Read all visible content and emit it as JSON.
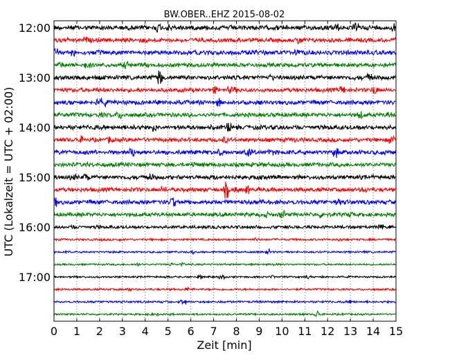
{
  "chart_data": {
    "type": "line",
    "title": "BW.OBER..EHZ 2015-08-02",
    "xlabel": "Zeit  [min]",
    "ylabel": "UTC (Lokalzeit = UTC + 02:00)",
    "xlim": [
      0,
      15
    ],
    "xticks": [
      "0",
      "1",
      "2",
      "3",
      "4",
      "5",
      "6",
      "7",
      "8",
      "9",
      "10",
      "11",
      "12",
      "13",
      "14",
      "15"
    ],
    "ytick_labels": [
      "12:00",
      "13:00",
      "14:00",
      "15:00",
      "16:00",
      "17:00"
    ],
    "row_interval_minutes": 15,
    "grid": "vertical dotted",
    "colors": [
      "#000000",
      "#ff0000",
      "#0000ff",
      "#008000"
    ],
    "rows": [
      {
        "start": "12:00",
        "color": "#000000",
        "amplitude": 0.9
      },
      {
        "start": "12:15",
        "color": "#ff0000",
        "amplitude": 0.8
      },
      {
        "start": "12:30",
        "color": "#0000ff",
        "amplitude": 0.85
      },
      {
        "start": "12:45",
        "color": "#008000",
        "amplitude": 0.8
      },
      {
        "start": "13:00",
        "color": "#000000",
        "amplitude": 0.85
      },
      {
        "start": "13:15",
        "color": "#ff0000",
        "amplitude": 0.8
      },
      {
        "start": "13:30",
        "color": "#0000ff",
        "amplitude": 0.85
      },
      {
        "start": "13:45",
        "color": "#008000",
        "amplitude": 0.8
      },
      {
        "start": "14:00",
        "color": "#000000",
        "amplitude": 0.85
      },
      {
        "start": "14:15",
        "color": "#ff0000",
        "amplitude": 0.8
      },
      {
        "start": "14:30",
        "color": "#0000ff",
        "amplitude": 0.85
      },
      {
        "start": "14:45",
        "color": "#008000",
        "amplitude": 0.8
      },
      {
        "start": "15:00",
        "color": "#000000",
        "amplitude": 0.8
      },
      {
        "start": "15:15",
        "color": "#ff0000",
        "amplitude": 0.8
      },
      {
        "start": "15:30",
        "color": "#0000ff",
        "amplitude": 0.85
      },
      {
        "start": "15:45",
        "color": "#008000",
        "amplitude": 0.75
      },
      {
        "start": "16:00",
        "color": "#000000",
        "amplitude": 0.6
      },
      {
        "start": "16:15",
        "color": "#ff0000",
        "amplitude": 0.4
      },
      {
        "start": "16:30",
        "color": "#0000ff",
        "amplitude": 0.35
      },
      {
        "start": "16:45",
        "color": "#008000",
        "amplitude": 0.35
      },
      {
        "start": "17:00",
        "color": "#000000",
        "amplitude": 0.35
      },
      {
        "start": "17:15",
        "color": "#ff0000",
        "amplitude": 0.4
      },
      {
        "start": "17:30",
        "color": "#0000ff",
        "amplitude": 0.4
      },
      {
        "start": "17:45",
        "color": "#008000",
        "amplitude": 0.35
      }
    ]
  }
}
